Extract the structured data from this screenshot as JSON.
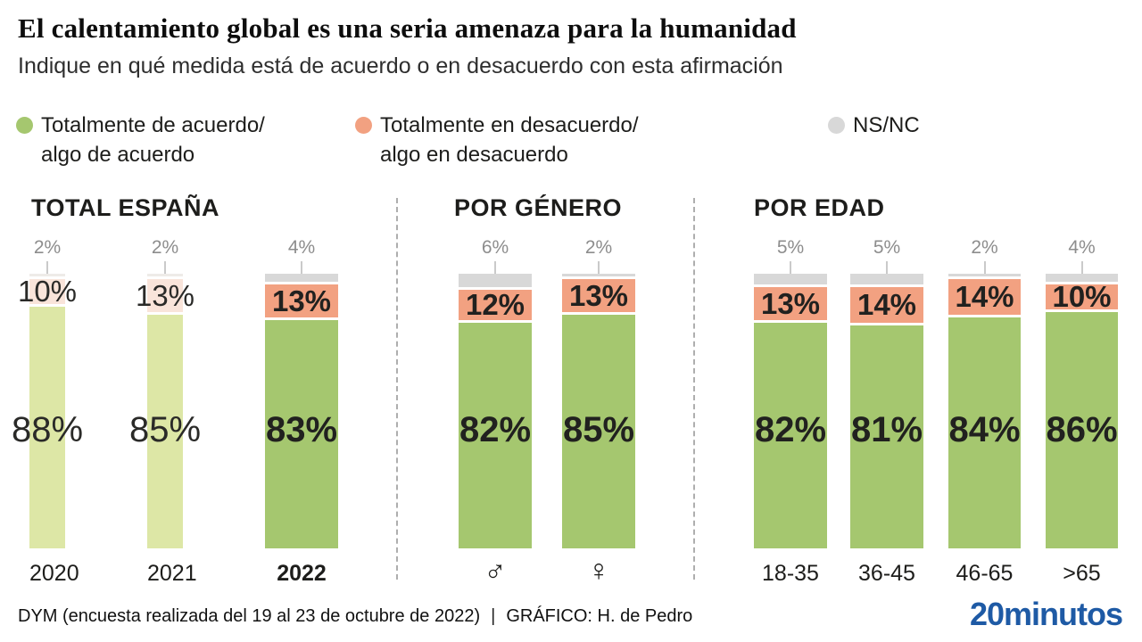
{
  "header": {
    "title": "El calentamiento global es una seria amenaza para la humanidad",
    "subtitle": "Indique en qué medida está de acuerdo o en desacuerdo con esta afirmación"
  },
  "legend": {
    "items": [
      {
        "key": "agree",
        "color": "#a5c76f",
        "line1": "Totalmente de acuerdo/",
        "line2": "algo de acuerdo"
      },
      {
        "key": "disagree",
        "color": "#f2a181",
        "line1": "Totalmente en desacuerdo/",
        "line2": "algo en desacuerdo"
      },
      {
        "key": "nsnc",
        "color": "#d8d8d8",
        "line1": "NS/NC",
        "line2": ""
      }
    ]
  },
  "chart_data": {
    "type": "bar",
    "stacked": true,
    "unit": "%",
    "ylim": [
      0,
      100
    ],
    "grid": false,
    "legend_position": "top",
    "series_names": [
      "Totalmente de acuerdo/algo de acuerdo",
      "Totalmente en desacuerdo/algo en desacuerdo",
      "NS/NC"
    ],
    "colors": {
      "agree": "#a5c76f",
      "disagree": "#f2a181",
      "nsnc": "#d8d8d8",
      "agree_muted": "#dde7a6",
      "disagree_muted": "#f9e4da",
      "nsnc_muted": "#eeebe8"
    },
    "groups": [
      {
        "title": "TOTAL ESPAÑA",
        "bars": [
          {
            "category": "2020",
            "agree": 88,
            "disagree": 10,
            "nsnc": 2,
            "muted": true,
            "bold_category": false
          },
          {
            "category": "2021",
            "agree": 85,
            "disagree": 13,
            "nsnc": 2,
            "muted": true,
            "bold_category": false
          },
          {
            "category": "2022",
            "agree": 83,
            "disagree": 13,
            "nsnc": 4,
            "muted": false,
            "bold_category": true
          }
        ]
      },
      {
        "title": "POR GÉNERO",
        "bars": [
          {
            "category": "♂",
            "agree": 82,
            "disagree": 12,
            "nsnc": 6,
            "muted": false,
            "bold_category": false
          },
          {
            "category": "♀",
            "agree": 85,
            "disagree": 13,
            "nsnc": 2,
            "muted": false,
            "bold_category": false
          }
        ]
      },
      {
        "title": "POR EDAD",
        "bars": [
          {
            "category": "18-35",
            "agree": 82,
            "disagree": 13,
            "nsnc": 5,
            "muted": false,
            "bold_category": false
          },
          {
            "category": "36-45",
            "agree": 81,
            "disagree": 14,
            "nsnc": 5,
            "muted": false,
            "bold_category": false
          },
          {
            "category": "46-65",
            "agree": 84,
            "disagree": 14,
            "nsnc": 2,
            "muted": false,
            "bold_category": false
          },
          {
            "category": ">65",
            "agree": 86,
            "disagree": 10,
            "nsnc": 4,
            "muted": false,
            "bold_category": false
          }
        ]
      }
    ]
  },
  "footer": {
    "source": "DYM (encuesta realizada del 19 al 23 de octubre de 2022)",
    "separator": "|",
    "credit": "GRÁFICO: H. de Pedro",
    "logo": "20minutos",
    "logo_color": "#1e5aa5"
  }
}
